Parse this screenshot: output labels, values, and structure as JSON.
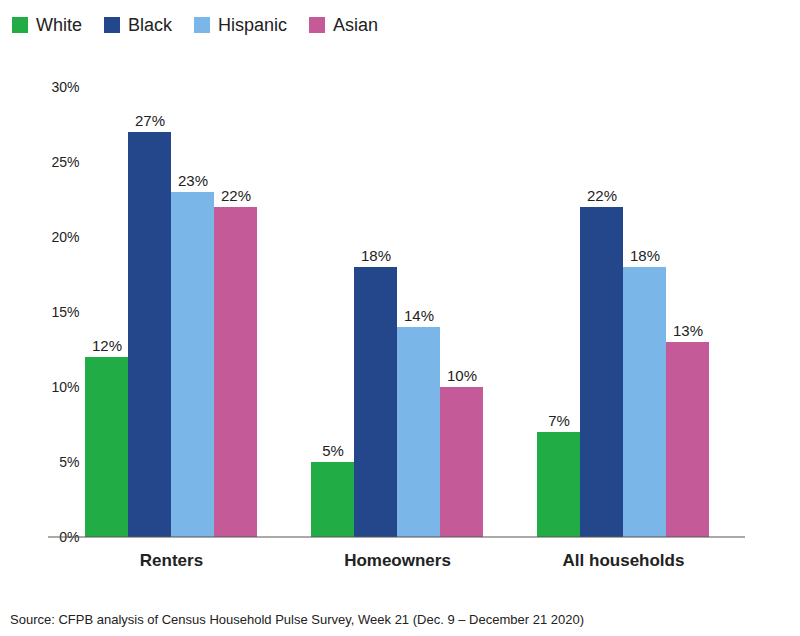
{
  "chart_data": {
    "type": "bar",
    "caption": "Source: CFPB analysis of Census Household Pulse Survey, Week 21 (Dec. 9 – December 21 2020)",
    "categories": [
      "Renters",
      "Homeowners",
      "All households"
    ],
    "series": [
      {
        "name": "White",
        "color": "#22ac45",
        "values": [
          12,
          5,
          7
        ],
        "value_labels": [
          "12%",
          "5%",
          "7%"
        ]
      },
      {
        "name": "Black",
        "color": "#23478a",
        "values": [
          27,
          18,
          22
        ],
        "value_labels": [
          "27%",
          "18%",
          "22%"
        ]
      },
      {
        "name": "Hispanic",
        "color": "#7bb6e8",
        "values": [
          23,
          14,
          18
        ],
        "value_labels": [
          "23%",
          "14%",
          "18%"
        ]
      },
      {
        "name": "Asian",
        "color": "#c55a99",
        "values": [
          22,
          10,
          13
        ],
        "value_labels": [
          "22%",
          "10%",
          "13%"
        ]
      }
    ],
    "ylim": [
      0,
      30
    ],
    "yticks": [
      {
        "value": 0,
        "label": "0%"
      },
      {
        "value": 5,
        "label": "5%"
      },
      {
        "value": 10,
        "label": "10%"
      },
      {
        "value": 15,
        "label": "15%"
      },
      {
        "value": 20,
        "label": "20%"
      },
      {
        "value": 25,
        "label": "25%"
      },
      {
        "value": 30,
        "label": "30%"
      }
    ],
    "grid": false,
    "legend": "top-left",
    "data_labels": true
  }
}
